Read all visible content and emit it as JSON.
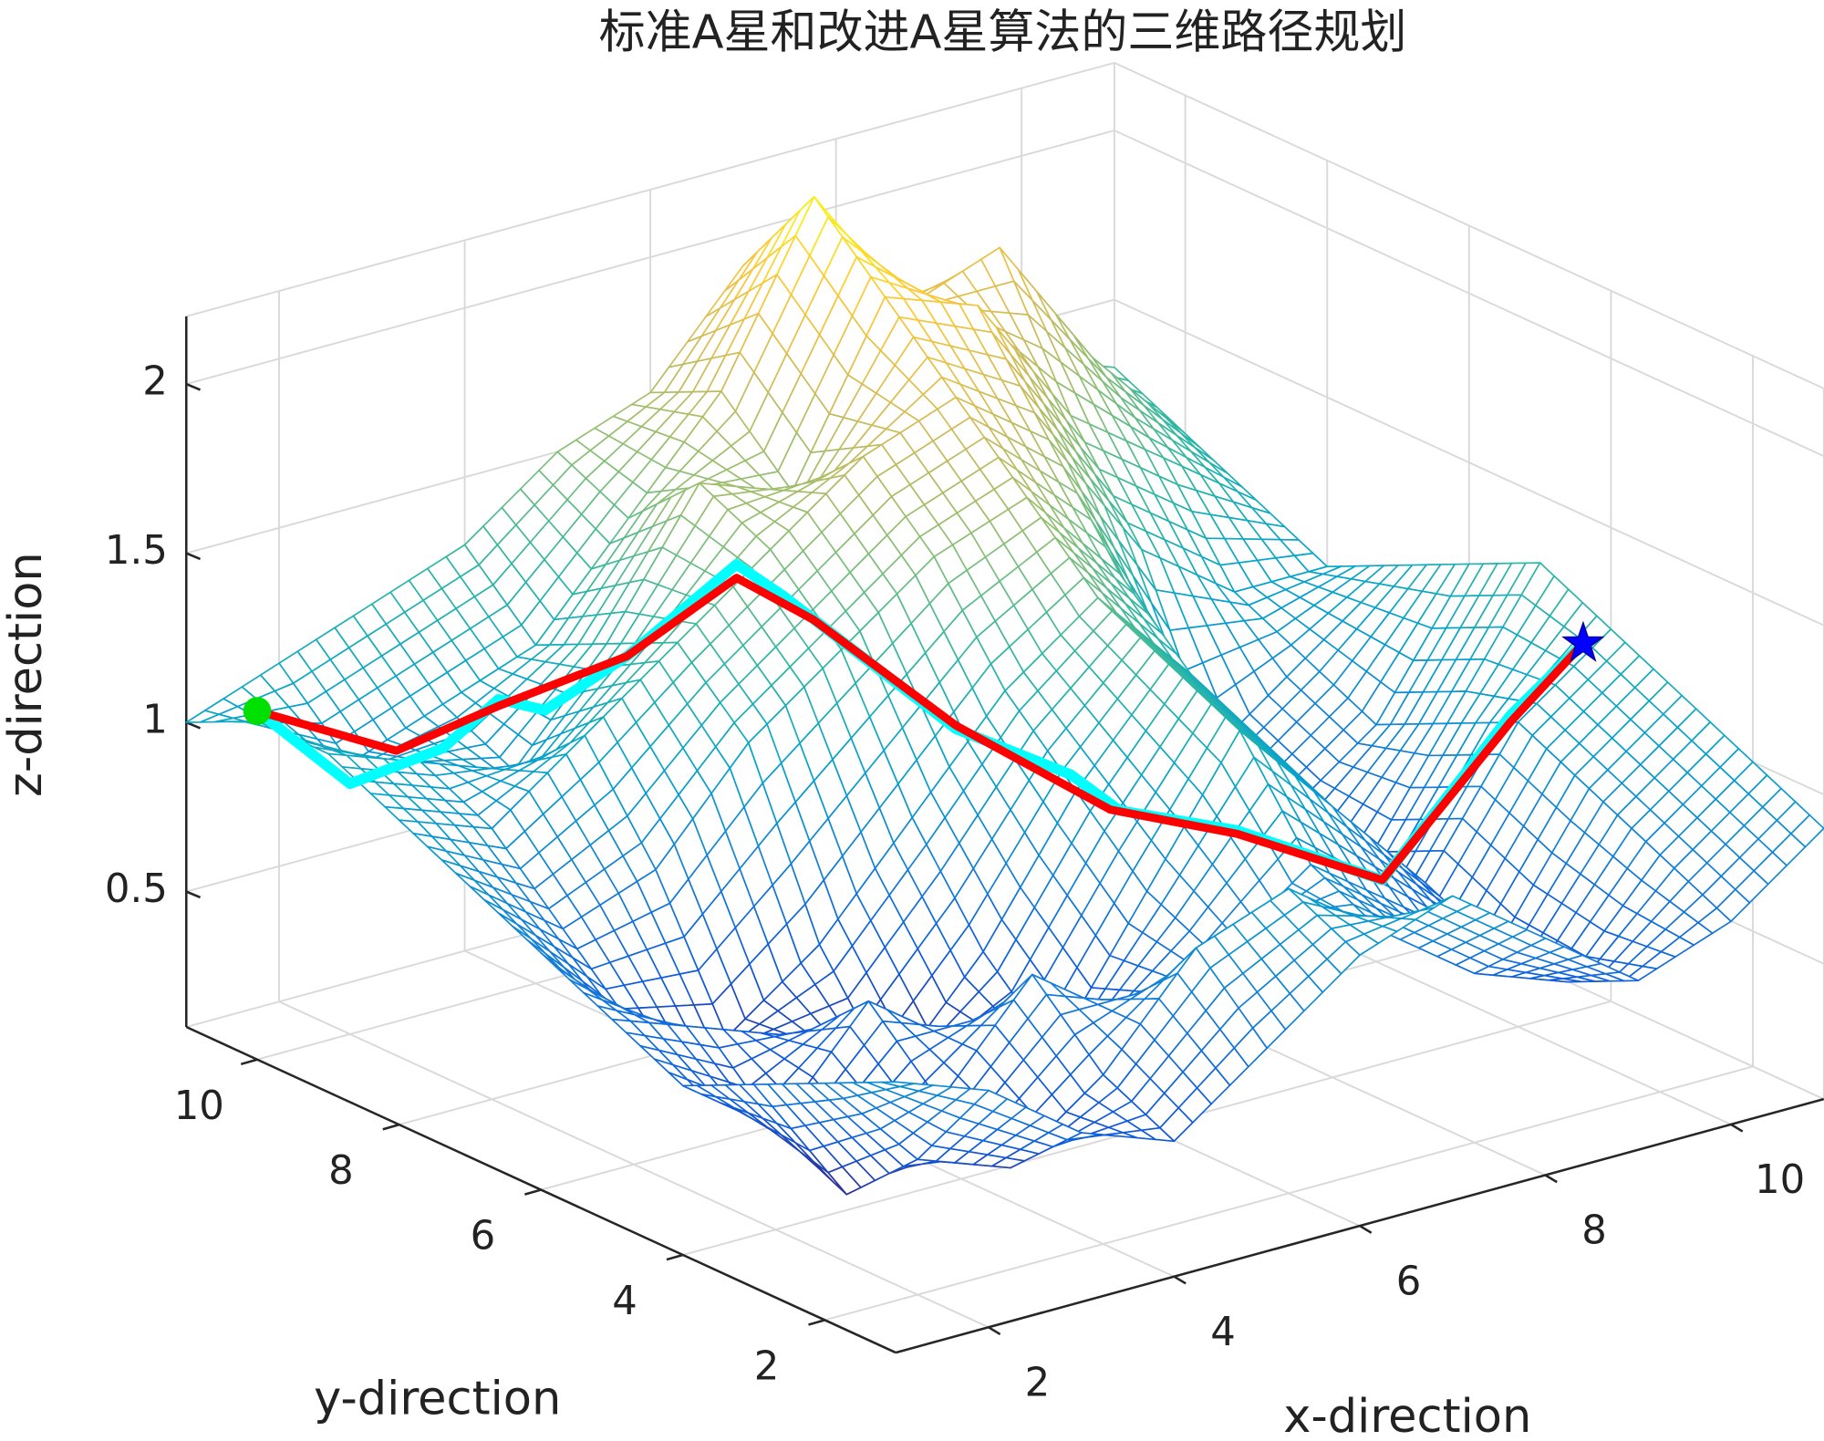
{
  "chart_data": {
    "type": "surface3d",
    "title": "标准A星和改进A星算法的三维路径规划",
    "xlabel": "x-direction",
    "ylabel": "y-direction",
    "zlabel": "z-direction",
    "xlim": [
      1,
      11
    ],
    "ylim": [
      1,
      11
    ],
    "zlim": [
      0.1,
      2.2
    ],
    "xticks": [
      2,
      4,
      6,
      8,
      10
    ],
    "yticks": [
      2,
      4,
      6,
      8,
      10
    ],
    "zticks": [
      0.5,
      1,
      1.5,
      2
    ],
    "grid": true,
    "surface": {
      "x": [
        1,
        2,
        3,
        4,
        5,
        6,
        7,
        8,
        9,
        10,
        11
      ],
      "y": [
        1,
        2,
        3,
        4,
        5,
        6,
        7,
        8,
        9,
        10,
        11
      ],
      "z": [
        [
          0.9,
          0.8,
          0.6,
          0.5,
          0.7,
          0.9,
          1.0,
          0.8,
          0.6,
          0.7,
          0.9
        ],
        [
          0.8,
          0.5,
          0.4,
          0.6,
          0.9,
          1.0,
          0.8,
          0.6,
          0.5,
          0.8,
          1.0
        ],
        [
          0.7,
          0.3,
          0.5,
          0.8,
          0.6,
          0.7,
          0.9,
          0.7,
          0.5,
          0.9,
          1.1
        ],
        [
          0.6,
          0.4,
          0.7,
          0.5,
          0.4,
          0.8,
          1.2,
          0.9,
          0.6,
          1.0,
          1.2
        ],
        [
          0.7,
          0.6,
          0.5,
          0.3,
          0.6,
          1.0,
          1.3,
          1.0,
          0.5,
          0.9,
          1.3
        ],
        [
          0.8,
          0.5,
          0.4,
          0.6,
          0.9,
          1.2,
          1.4,
          1.1,
          0.6,
          0.8,
          1.2
        ],
        [
          0.9,
          0.7,
          0.8,
          1.1,
          1.3,
          1.5,
          1.6,
          1.3,
          0.7,
          0.9,
          1.1
        ],
        [
          1.0,
          0.9,
          1.1,
          1.3,
          1.5,
          1.7,
          1.8,
          1.6,
          1.2,
          1.0,
          1.0
        ],
        [
          1.1,
          1.0,
          0.9,
          1.2,
          1.6,
          1.5,
          2.0,
          1.9,
          1.5,
          1.3,
          1.1
        ],
        [
          1.1,
          0.9,
          1.0,
          1.1,
          1.4,
          1.7,
          2.2,
          1.8,
          1.9,
          1.5,
          1.2
        ],
        [
          1.0,
          1.1,
          1.2,
          1.3,
          1.5,
          1.6,
          1.9,
          1.7,
          1.6,
          1.4,
          1.3
        ]
      ]
    },
    "series": [
      {
        "color": "#00ffff",
        "x": [
          1,
          2,
          3,
          3.6,
          4.1,
          4.6,
          5.4,
          5.9,
          7,
          7.7,
          8.0,
          8.5,
          9.3,
          10.3,
          10.7
        ],
        "y": [
          10,
          10,
          10,
          10,
          10,
          9.5,
          9,
          9,
          8,
          7.3,
          7,
          6,
          5,
          4.5,
          4
        ],
        "z": [
          1.13,
          0.84,
          0.87,
          0.97,
          0.9,
          1.07,
          1.33,
          1.2,
          0.82,
          0.7,
          0.6,
          0.6,
          0.49,
          0.95,
          1.18
        ]
      },
      {
        "color": "#ff0000",
        "x": [
          1,
          2.5,
          3.6,
          4.6,
          5.4,
          6.0,
          7,
          7.9,
          8.5,
          9.3,
          10.3,
          10.7
        ],
        "y": [
          10,
          10,
          10,
          9.5,
          9,
          8.7,
          8,
          7,
          6,
          5,
          4.5,
          4
        ],
        "z": [
          1.13,
          0.9,
          0.95,
          1.07,
          1.29,
          1.15,
          0.83,
          0.61,
          0.59,
          0.49,
          0.93,
          1.18
        ]
      }
    ],
    "start_marker": {
      "color": "#00e000"
    },
    "goal_marker": {
      "color": "#0000ff"
    }
  }
}
